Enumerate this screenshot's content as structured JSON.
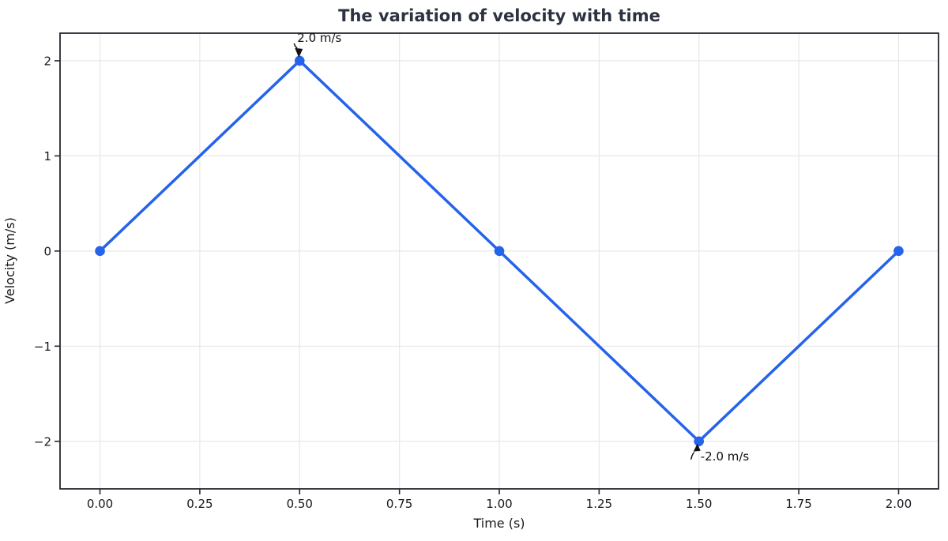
{
  "chart_data": {
    "type": "line",
    "title": "The variation of velocity with time",
    "xlabel": "Time (s)",
    "ylabel": "Velocity (m/s)",
    "series": [
      {
        "name": "velocity",
        "x": [
          0.0,
          0.5,
          1.0,
          1.5,
          2.0
        ],
        "y": [
          0.0,
          2.0,
          0.0,
          -2.0,
          0.0
        ]
      }
    ],
    "x_tick_values": [
      0.0,
      0.25,
      0.5,
      0.75,
      1.0,
      1.25,
      1.5,
      1.75,
      2.0
    ],
    "x_tick_labels": [
      "0.00",
      "0.25",
      "0.50",
      "0.75",
      "1.00",
      "1.25",
      "1.50",
      "1.75",
      "2.00"
    ],
    "y_tick_values": [
      2,
      1,
      0,
      -1,
      -2
    ],
    "y_tick_labels": [
      "2",
      "1",
      "0",
      "−1",
      "−2"
    ],
    "xlim": [
      -0.1,
      2.1
    ],
    "ylim": [
      -2.5,
      2.29
    ],
    "grid": true,
    "legend": "none",
    "annotations": [
      {
        "text": "2.0 m/s",
        "x": 0.5,
        "y": 2.0,
        "placement": "above"
      },
      {
        "text": "-2.0 m/s",
        "x": 1.5,
        "y": -2.0,
        "placement": "below"
      }
    ],
    "colors": {
      "line": "#2563eb",
      "marker": "#2563eb",
      "grid": "#e7e7e7",
      "spine": "#24292f",
      "title": "#2b3240",
      "tick_text": "#15181c",
      "annotation": "#111111",
      "background": "#ffffff"
    }
  }
}
